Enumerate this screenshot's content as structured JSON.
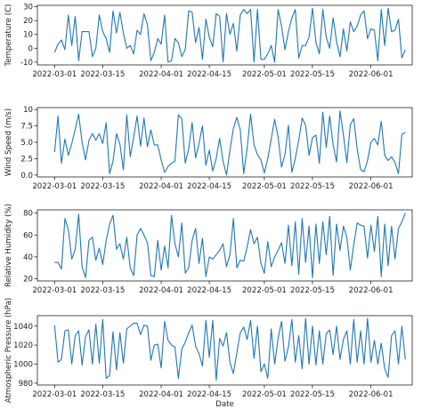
{
  "chart_data": [
    {
      "type": "line",
      "ylabel": "Temperature (C)",
      "xlabel": "",
      "ylim": [
        -12,
        31
      ],
      "yticks": [
        -10,
        0,
        10,
        20,
        30
      ],
      "xlim": [
        "2022-02-24",
        "2022-06-13"
      ],
      "xticks": [
        "2022-03-01",
        "2022-03-15",
        "2022-04-01",
        "2022-04-15",
        "2022-05-01",
        "2022-05-15",
        "2022-06-01"
      ],
      "series": [
        {
          "x_start": "2022-03-01",
          "x_step_days": 1,
          "color": "#1f77b4",
          "values": [
            -3,
            3,
            6,
            -1,
            24,
            2,
            23,
            -9,
            12,
            12,
            12,
            -6,
            0,
            24,
            12,
            7,
            -3,
            27,
            11,
            26,
            11,
            0,
            2,
            -4,
            13,
            10,
            25,
            17,
            -9,
            -3,
            7,
            3,
            24,
            -10,
            -9,
            7,
            4,
            -6,
            -1,
            27,
            26,
            4,
            15,
            -8,
            21,
            8,
            1,
            25,
            23,
            -10,
            25,
            10,
            18,
            -2,
            24,
            28,
            25,
            28,
            -10,
            28,
            -8,
            -8,
            -4,
            2,
            -10,
            28,
            16,
            -1,
            12,
            22,
            28,
            -7,
            2,
            2,
            8,
            29,
            4,
            -4,
            28,
            8,
            0,
            22,
            5,
            -6,
            14,
            -2,
            19,
            12,
            16,
            24,
            27,
            7,
            14,
            13,
            -9,
            28,
            2,
            29,
            12,
            13,
            21,
            -7,
            -1
          ]
        }
      ]
    },
    {
      "type": "line",
      "ylabel": "Wind Speed (m/s)",
      "xlabel": "",
      "ylim": [
        -0.3,
        10.3
      ],
      "yticks": [
        0.0,
        2.5,
        5.0,
        7.5,
        10.0
      ],
      "xlim": [
        "2022-02-24",
        "2022-06-13"
      ],
      "xticks": [
        "2022-03-01",
        "2022-03-15",
        "2022-04-01",
        "2022-04-15",
        "2022-05-01",
        "2022-05-15",
        "2022-06-01"
      ],
      "series": [
        {
          "x_start": "2022-03-01",
          "x_step_days": 1,
          "color": "#1f77b4",
          "values": [
            3.5,
            9.0,
            1.8,
            5.5,
            3.0,
            4.8,
            7.0,
            9.3,
            5.0,
            2.3,
            5.3,
            6.3,
            5.3,
            6.3,
            4.8,
            8.0,
            0.2,
            2.1,
            6.3,
            4.7,
            0.8,
            9.2,
            2.8,
            5.8,
            9.0,
            4.4,
            8.7,
            4.3,
            6.9,
            4.6,
            4.6,
            2.3,
            0.4,
            1.3,
            1.8,
            2.1,
            9.2,
            8.6,
            1.8,
            4.0,
            8.0,
            2.6,
            4.8,
            7.5,
            1.5,
            3.8,
            0.6,
            2.5,
            5.6,
            2.1,
            0.0,
            3.8,
            7.1,
            8.8,
            6.9,
            0.2,
            4.1,
            9.3,
            4.6,
            3.1,
            2.3,
            0.3,
            2.5,
            5.5,
            8.5,
            5.8,
            1.2,
            3.1,
            7.6,
            0.4,
            2.5,
            5.3,
            8.7,
            7.6,
            3.0,
            5.7,
            6.1,
            1.8,
            9.6,
            4.2,
            9.0,
            4.6,
            2.0,
            9.8,
            6.1,
            1.9,
            7.7,
            8.6,
            4.0,
            0.8,
            0.5,
            2.2,
            5.0,
            5.6,
            4.6,
            8.2,
            3.0,
            2.2,
            2.8,
            1.9,
            0.2,
            6.2,
            6.5
          ]
        }
      ]
    },
    {
      "type": "line",
      "ylabel": "Relative Humidity (%)",
      "xlabel": "",
      "ylim": [
        18,
        83
      ],
      "yticks": [
        20,
        40,
        60,
        80
      ],
      "xlim": [
        "2022-02-24",
        "2022-06-13"
      ],
      "xticks": [
        "2022-03-01",
        "2022-03-15",
        "2022-04-01",
        "2022-04-15",
        "2022-05-01",
        "2022-05-15",
        "2022-06-01"
      ],
      "series": [
        {
          "x_start": "2022-03-01",
          "x_step_days": 1,
          "color": "#1f77b4",
          "values": [
            35,
            35,
            29,
            75,
            65,
            38,
            47,
            79,
            31,
            21,
            55,
            58,
            37,
            48,
            33,
            55,
            70,
            78,
            47,
            52,
            38,
            58,
            30,
            23,
            60,
            66,
            60,
            53,
            23,
            22,
            55,
            28,
            50,
            30,
            78,
            52,
            40,
            71,
            25,
            30,
            55,
            66,
            34,
            57,
            22,
            40,
            38,
            42,
            46,
            52,
            31,
            42,
            75,
            30,
            37,
            36,
            49,
            65,
            52,
            58,
            34,
            25,
            54,
            31,
            40,
            46,
            53,
            34,
            69,
            32,
            72,
            24,
            75,
            35,
            68,
            21,
            70,
            34,
            72,
            42,
            77,
            23,
            70,
            46,
            68,
            58,
            28,
            51,
            71,
            69,
            68,
            39,
            69,
            45,
            77,
            22,
            70,
            32,
            68,
            38,
            66,
            72,
            80
          ]
        }
      ]
    },
    {
      "type": "line",
      "ylabel": "Atmospheric Pressure (hPa)",
      "xlabel": "Date",
      "ylim": [
        978,
        1051
      ],
      "yticks": [
        980,
        1000,
        1020,
        1040
      ],
      "xlim": [
        "2022-02-24",
        "2022-06-13"
      ],
      "xticks": [
        "2022-03-01",
        "2022-03-15",
        "2022-04-01",
        "2022-04-15",
        "2022-05-01",
        "2022-05-15",
        "2022-06-01"
      ],
      "series": [
        {
          "x_start": "2022-03-01",
          "x_step_days": 1,
          "color": "#1f77b4",
          "values": [
            1041,
            1002,
            1005,
            1035,
            1036,
            1000,
            1030,
            1035,
            999,
            1029,
            1036,
            1000,
            1042,
            1001,
            1047,
            985,
            988,
            1034,
            994,
            1033,
            1001,
            1037,
            1040,
            1043,
            1043,
            1031,
            1041,
            1040,
            1004,
            1020,
            1021,
            996,
            1045,
            1025,
            1020,
            1018,
            985,
            1016,
            1023,
            1033,
            1041,
            1019,
            1011,
            998,
            1046,
            1007,
            1046,
            983,
            1027,
            1019,
            1033,
            1002,
            990,
            1012,
            1033,
            1039,
            1026,
            1046,
            1006,
            1040,
            992,
            1000,
            985,
            1037,
            1000,
            1027,
            1045,
            1003,
            1018,
            1047,
            1002,
            1030,
            995,
            1048,
            1000,
            1040,
            999,
            1035,
            1000,
            1032,
            1036,
            1010,
            1040,
            1005,
            1026,
            1035,
            1000,
            1047,
            1002,
            1035,
            1000,
            1048,
            1002,
            1025,
            1000,
            1022,
            995,
            986,
            1030,
            1035,
            1000,
            1040,
            1005
          ]
        }
      ]
    }
  ]
}
